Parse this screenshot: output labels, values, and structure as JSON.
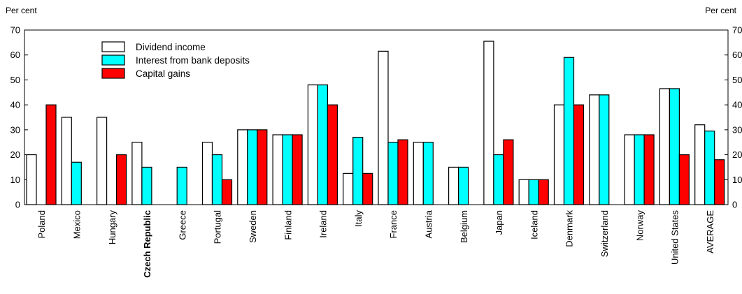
{
  "chart_data": {
    "type": "bar",
    "ylabel_left": "Per cent",
    "ylabel_right": "Per cent",
    "ylim": [
      0,
      70
    ],
    "yticks": [
      0,
      10,
      20,
      30,
      40,
      50,
      60,
      70
    ],
    "legend_position": "top-left",
    "grid": false,
    "categories": [
      "Poland",
      "Mexico",
      "Hungary",
      "Czech Republic",
      "Greece",
      "Portugal",
      "Sweden",
      "Finland",
      "Ireland",
      "Italy",
      "France",
      "Austria",
      "Belgium",
      "Japan",
      "Iceland",
      "Denmark",
      "Switzerland",
      "Norway",
      "United States",
      "AVERAGE"
    ],
    "bold_categories": [
      "Czech Republic"
    ],
    "series": [
      {
        "name": "Dividend income",
        "color": "#ffffff",
        "values": [
          20,
          35,
          35,
          25,
          null,
          25,
          30,
          28,
          48,
          12.5,
          61.5,
          25,
          15,
          65.5,
          10,
          40,
          44,
          28,
          46.5,
          32
        ]
      },
      {
        "name": "Interest from bank deposits",
        "color": "#00ffff",
        "values": [
          null,
          17,
          null,
          15,
          15,
          20,
          30,
          28,
          48,
          27,
          25,
          25,
          15,
          20,
          10,
          59,
          44,
          28,
          46.5,
          29.5
        ]
      },
      {
        "name": "Capital gains",
        "color": "#ff0000",
        "values": [
          40,
          null,
          20,
          null,
          null,
          10,
          30,
          28,
          40,
          12.5,
          26,
          null,
          null,
          26,
          10,
          40,
          null,
          28,
          20,
          18
        ]
      }
    ]
  }
}
